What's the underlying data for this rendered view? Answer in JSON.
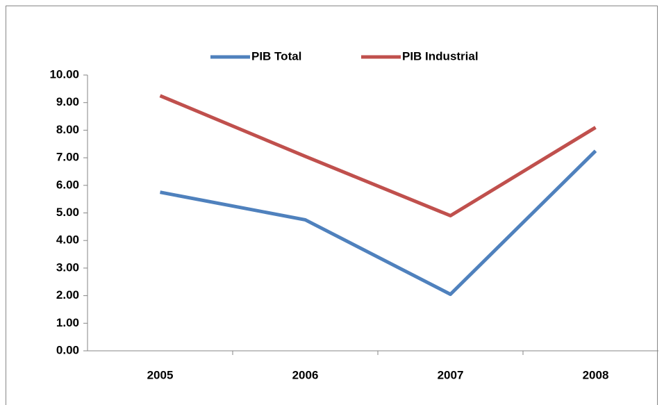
{
  "chart_data": {
    "type": "line",
    "categories": [
      "2005",
      "2006",
      "2007",
      "2008"
    ],
    "series": [
      {
        "name": "PIB Total",
        "color": "#4f81bd",
        "values": [
          5.75,
          4.75,
          2.05,
          7.25
        ]
      },
      {
        "name": "PIB Industrial",
        "color": "#c0504d",
        "values": [
          9.25,
          7.05,
          4.9,
          8.1
        ]
      }
    ],
    "ylim": [
      0,
      10
    ],
    "yticks": [
      {
        "value": 0,
        "label": "0.00"
      },
      {
        "value": 1,
        "label": "1.00"
      },
      {
        "value": 2,
        "label": "2.00"
      },
      {
        "value": 3,
        "label": "3.00"
      },
      {
        "value": 4,
        "label": "4.00"
      },
      {
        "value": 5,
        "label": "5.00"
      },
      {
        "value": 6,
        "label": "6.00"
      },
      {
        "value": 7,
        "label": "7.00"
      },
      {
        "value": 8,
        "label": "8.00"
      },
      {
        "value": 9,
        "label": "9.00"
      },
      {
        "value": 10,
        "label": "10.00"
      }
    ],
    "grid": false,
    "legend": "top"
  }
}
